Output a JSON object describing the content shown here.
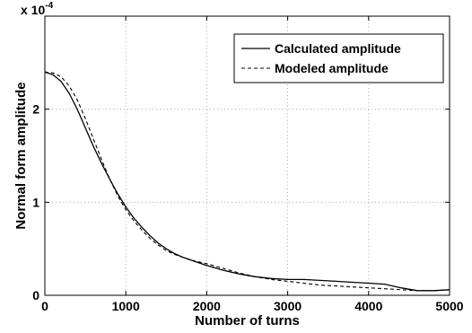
{
  "chart_data": {
    "type": "line",
    "title": "",
    "xlabel": "Number of turns",
    "ylabel": "Normal form amplitude",
    "y_multiplier_label": "x 10",
    "y_multiplier_exponent": "-4",
    "xlim": [
      0,
      5000
    ],
    "ylim": [
      0,
      3
    ],
    "xticks": [
      0,
      1000,
      2000,
      3000,
      4000,
      5000
    ],
    "yticks": [
      0,
      1,
      2
    ],
    "grid": true,
    "legend_position": "top-right",
    "x": [
      0,
      100,
      200,
      300,
      400,
      500,
      600,
      700,
      800,
      900,
      1000,
      1100,
      1200,
      1300,
      1400,
      1500,
      1600,
      1700,
      1800,
      1900,
      2000,
      2200,
      2400,
      2600,
      2800,
      3000,
      3200,
      3400,
      3600,
      3800,
      4000,
      4200,
      4400,
      4600,
      4800,
      5000
    ],
    "series": [
      {
        "name": "Calculated amplitude",
        "style": "solid",
        "values": [
          2.4,
          2.37,
          2.3,
          2.17,
          2.0,
          1.8,
          1.6,
          1.42,
          1.25,
          1.09,
          0.95,
          0.83,
          0.73,
          0.64,
          0.56,
          0.5,
          0.45,
          0.41,
          0.38,
          0.35,
          0.32,
          0.27,
          0.23,
          0.2,
          0.18,
          0.17,
          0.17,
          0.16,
          0.15,
          0.14,
          0.13,
          0.12,
          0.08,
          0.05,
          0.05,
          0.06
        ]
      },
      {
        "name": "Modeled amplitude",
        "style": "dashed",
        "values": [
          2.4,
          2.39,
          2.35,
          2.25,
          2.1,
          1.9,
          1.68,
          1.46,
          1.25,
          1.07,
          0.92,
          0.8,
          0.7,
          0.61,
          0.54,
          0.48,
          0.44,
          0.41,
          0.38,
          0.36,
          0.34,
          0.29,
          0.24,
          0.2,
          0.17,
          0.15,
          0.13,
          0.11,
          0.1,
          0.09,
          0.08,
          0.07,
          0.06,
          0.05,
          0.05,
          0.06
        ]
      }
    ]
  }
}
